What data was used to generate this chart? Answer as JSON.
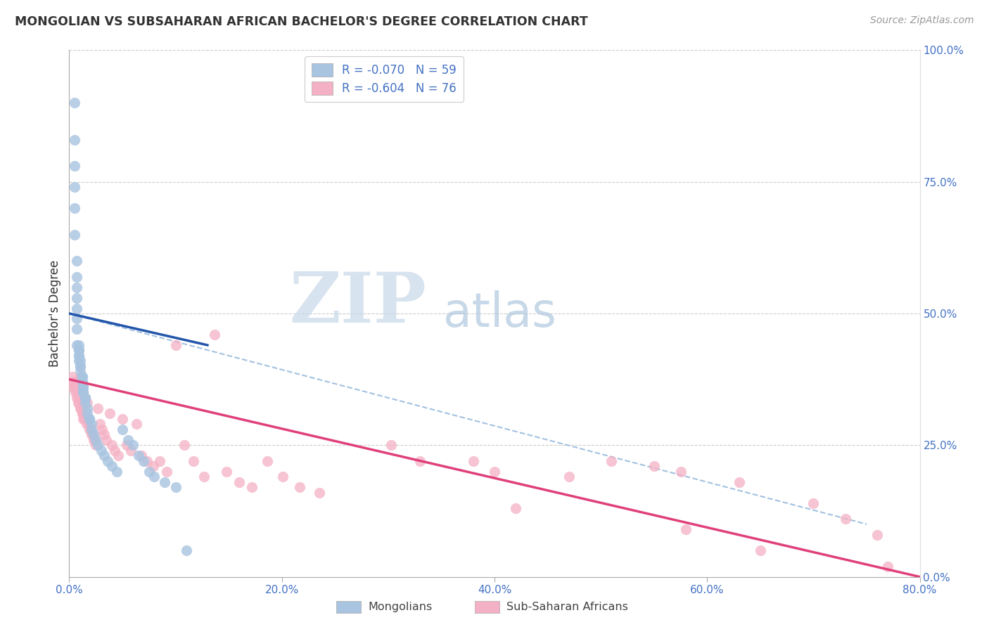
{
  "title": "MONGOLIAN VS SUBSAHARAN AFRICAN BACHELOR'S DEGREE CORRELATION CHART",
  "source": "Source: ZipAtlas.com",
  "ylabel": "Bachelor's Degree",
  "mongolian_R": -0.07,
  "mongolian_N": 59,
  "subsaharan_R": -0.604,
  "subsaharan_N": 76,
  "mongolian_color": "#a8c4e0",
  "mongolian_line_color": "#2255aa",
  "subsaharan_color": "#f4b0c4",
  "subsaharan_line_color": "#e0407a",
  "dashed_line_color": "#99bbdd",
  "watermark_zip": "ZIP",
  "watermark_atlas": "atlas",
  "watermark_color_zip": "#c8d8e8",
  "watermark_color_atlas": "#aac4dc",
  "x_min": 0.0,
  "x_max": 0.8,
  "y_min": 0.0,
  "y_max": 1.0,
  "right_yticklabels": [
    "0.0%",
    "25.0%",
    "50.0%",
    "75.0%",
    "100.0%"
  ],
  "right_ytick_vals": [
    0.0,
    0.25,
    0.5,
    0.75,
    1.0
  ],
  "x_ticklabels": [
    "0.0%",
    "20.0%",
    "40.0%",
    "60.0%",
    "80.0%"
  ],
  "x_tick_vals": [
    0.0,
    0.2,
    0.4,
    0.6,
    0.8
  ],
  "mongolian_x": [
    0.005,
    0.005,
    0.005,
    0.005,
    0.005,
    0.005,
    0.007,
    0.007,
    0.007,
    0.007,
    0.007,
    0.007,
    0.007,
    0.007,
    0.009,
    0.009,
    0.009,
    0.009,
    0.009,
    0.009,
    0.01,
    0.01,
    0.01,
    0.01,
    0.012,
    0.012,
    0.012,
    0.012,
    0.013,
    0.013,
    0.013,
    0.013,
    0.015,
    0.015,
    0.015,
    0.017,
    0.017,
    0.019,
    0.019,
    0.021,
    0.021,
    0.023,
    0.025,
    0.027,
    0.03,
    0.033,
    0.036,
    0.04,
    0.045,
    0.05,
    0.055,
    0.06,
    0.065,
    0.07,
    0.075,
    0.08,
    0.09,
    0.1,
    0.11
  ],
  "mongolian_y": [
    0.9,
    0.83,
    0.78,
    0.74,
    0.7,
    0.65,
    0.6,
    0.57,
    0.55,
    0.53,
    0.51,
    0.49,
    0.47,
    0.44,
    0.44,
    0.43,
    0.43,
    0.42,
    0.42,
    0.41,
    0.41,
    0.4,
    0.4,
    0.39,
    0.38,
    0.38,
    0.37,
    0.37,
    0.36,
    0.36,
    0.35,
    0.35,
    0.34,
    0.34,
    0.33,
    0.32,
    0.31,
    0.3,
    0.3,
    0.29,
    0.28,
    0.27,
    0.26,
    0.25,
    0.24,
    0.23,
    0.22,
    0.21,
    0.2,
    0.28,
    0.26,
    0.25,
    0.23,
    0.22,
    0.2,
    0.19,
    0.18,
    0.17,
    0.05
  ],
  "subsaharan_x": [
    0.003,
    0.004,
    0.004,
    0.005,
    0.005,
    0.006,
    0.006,
    0.007,
    0.007,
    0.008,
    0.008,
    0.009,
    0.01,
    0.01,
    0.011,
    0.012,
    0.012,
    0.013,
    0.014,
    0.015,
    0.016,
    0.017,
    0.018,
    0.019,
    0.02,
    0.021,
    0.022,
    0.023,
    0.024,
    0.025,
    0.027,
    0.029,
    0.031,
    0.033,
    0.035,
    0.038,
    0.04,
    0.043,
    0.046,
    0.05,
    0.054,
    0.058,
    0.063,
    0.068,
    0.073,
    0.079,
    0.085,
    0.092,
    0.1,
    0.108,
    0.117,
    0.127,
    0.137,
    0.148,
    0.16,
    0.172,
    0.186,
    0.201,
    0.217,
    0.235,
    0.303,
    0.33,
    0.38,
    0.4,
    0.42,
    0.47,
    0.51,
    0.55,
    0.575,
    0.58,
    0.63,
    0.65,
    0.7,
    0.73,
    0.76,
    0.77
  ],
  "subsaharan_y": [
    0.38,
    0.37,
    0.36,
    0.37,
    0.36,
    0.36,
    0.35,
    0.35,
    0.34,
    0.34,
    0.33,
    0.33,
    0.38,
    0.32,
    0.32,
    0.31,
    0.31,
    0.3,
    0.3,
    0.34,
    0.29,
    0.33,
    0.29,
    0.28,
    0.28,
    0.27,
    0.27,
    0.26,
    0.26,
    0.25,
    0.32,
    0.29,
    0.28,
    0.27,
    0.26,
    0.31,
    0.25,
    0.24,
    0.23,
    0.3,
    0.25,
    0.24,
    0.29,
    0.23,
    0.22,
    0.21,
    0.22,
    0.2,
    0.44,
    0.25,
    0.22,
    0.19,
    0.46,
    0.2,
    0.18,
    0.17,
    0.22,
    0.19,
    0.17,
    0.16,
    0.25,
    0.22,
    0.22,
    0.2,
    0.13,
    0.19,
    0.22,
    0.21,
    0.2,
    0.09,
    0.18,
    0.05,
    0.14,
    0.11,
    0.08,
    0.02
  ],
  "mon_line_x0": 0.0,
  "mon_line_x1": 0.13,
  "mon_line_y0": 0.5,
  "mon_line_y1": 0.44,
  "sub_line_x0": 0.0,
  "sub_line_x1": 0.8,
  "sub_line_y0": 0.375,
  "sub_line_y1": 0.0,
  "dash_line_x0": 0.0,
  "dash_line_x1": 0.75,
  "dash_line_y0": 0.5,
  "dash_line_y1": 0.1
}
